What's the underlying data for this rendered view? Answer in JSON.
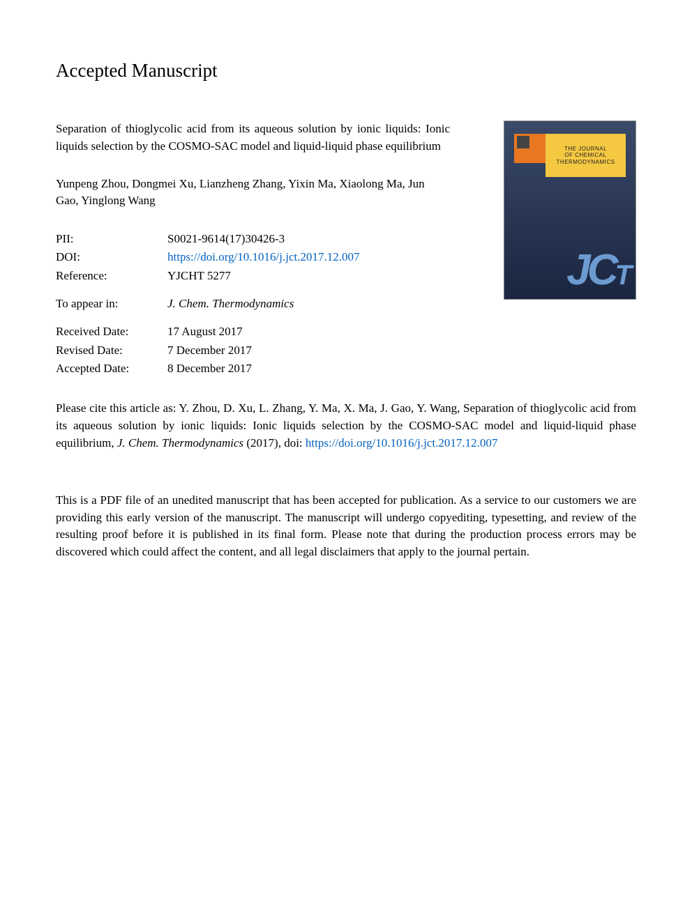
{
  "header": {
    "title": "Accepted Manuscript"
  },
  "paper": {
    "title": "Separation of thioglycolic acid from its aqueous solution by ionic liquids: Ionic liquids selection by the COSMO-SAC model and liquid-liquid phase equilibrium",
    "authors": "Yunpeng Zhou, Dongmei Xu, Lianzheng Zhang, Yixin Ma, Xiaolong Ma, Jun Gao, Yinglong Wang"
  },
  "metadata": {
    "pii_label": "PII:",
    "pii_value": "S0021-9614(17)30426-3",
    "doi_label": "DOI:",
    "doi_value": "https://doi.org/10.1016/j.jct.2017.12.007",
    "reference_label": "Reference:",
    "reference_value": "YJCHT 5277",
    "appear_label": "To appear in:",
    "appear_value": "J. Chem. Thermodynamics",
    "received_label": "Received Date:",
    "received_value": "17 August 2017",
    "revised_label": "Revised Date:",
    "revised_value": "7 December 2017",
    "accepted_label": "Accepted Date:",
    "accepted_value": "8 December 2017"
  },
  "cover": {
    "journal_line1": "THE JOURNAL",
    "journal_line2": "OF CHEMICAL",
    "journal_line3": "THERMODYNAMICS",
    "logo_main": "JC",
    "logo_sub": "T"
  },
  "citation": {
    "prefix": "Please cite this article as: Y. Zhou, D. Xu, L. Zhang, Y. Ma, X. Ma, J. Gao, Y. Wang, Separation of thioglycolic acid from its aqueous solution by ionic liquids: Ionic liquids selection by the COSMO-SAC model and liquid-liquid phase equilibrium, ",
    "journal": "J. Chem. Thermodynamics",
    "year": " (2017), doi: ",
    "link": "https://doi.org/10.1016/j.jct.2017.12.007"
  },
  "disclaimer": {
    "text": "This is a PDF file of an unedited manuscript that has been accepted for publication. As a service to our customers we are providing this early version of the manuscript. The manuscript will undergo copyediting, typesetting, and review of the resulting proof before it is published in its final form. Please note that during the production process errors may be discovered which could affect the content, and all legal disclaimers that apply to the journal pertain."
  },
  "colors": {
    "link": "#0563c1",
    "cover_gradient_top": "#3a4a68",
    "cover_gradient_bottom": "#1a2540",
    "cover_orange": "#e87722",
    "cover_yellow": "#f5c842",
    "cover_logo": "#6c9bd1"
  },
  "fonts": {
    "body_family": "Georgia, serif",
    "body_size": 17,
    "header_size": 27
  }
}
